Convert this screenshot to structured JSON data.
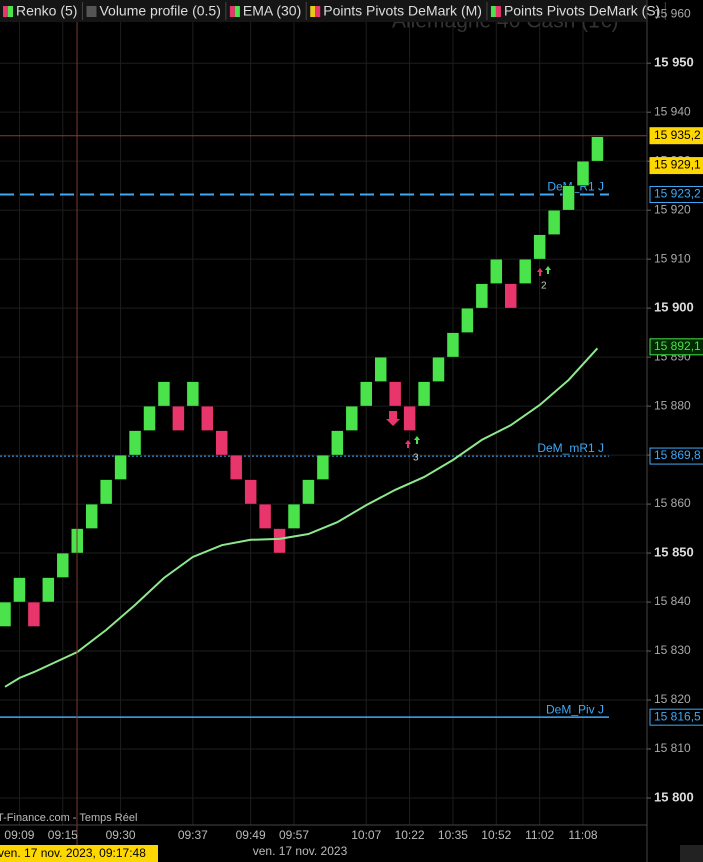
{
  "chart_data": {
    "type": "renko",
    "watermark": "Allemagne 40 Cash (1€)",
    "legend": [
      {
        "name": "Renko (5)",
        "colors": [
          "#e8356b",
          "#4be34b"
        ]
      },
      {
        "name": "Volume profile (0.5)",
        "colors": [
          "#555555",
          "#555555"
        ]
      },
      {
        "name": "EMA (30)",
        "colors": [
          "#e8356b",
          "#4be34b"
        ]
      },
      {
        "name": "Points Pivots DeMark (M)",
        "colors": [
          "#e8c81a",
          "#e8356b"
        ]
      },
      {
        "name": "Points Pivots DeMark (S)",
        "colors": [
          "#4be34b",
          "#e8356b"
        ]
      }
    ],
    "categories": [
      null,
      "09:09",
      null,
      null,
      "09:15",
      null,
      null,
      null,
      "09:30",
      null,
      null,
      null,
      null,
      "09:37",
      null,
      null,
      null,
      "09:49",
      null,
      null,
      "09:57",
      null,
      null,
      null,
      null,
      "10:07",
      null,
      null,
      "10:22",
      null,
      null,
      "10:35",
      null,
      null,
      "10:52",
      null,
      null,
      "11:02",
      null,
      null,
      "11:08",
      null
    ],
    "open": [
      15835,
      15840,
      15840,
      15840,
      15845,
      15850,
      15855,
      15860,
      15865,
      15870,
      15875,
      15880,
      15880,
      15880,
      15880,
      15875,
      15870,
      15865,
      15860,
      15855,
      15855,
      15860,
      15865,
      15870,
      15875,
      15880,
      15885,
      15885,
      15880,
      15880,
      15885,
      15890,
      15895,
      15900,
      15905,
      15905,
      15905,
      15910,
      15915,
      15920,
      15925,
      15930
    ],
    "close": [
      15840,
      15845,
      15835,
      15845,
      15850,
      15855,
      15860,
      15865,
      15870,
      15875,
      15880,
      15885,
      15875,
      15885,
      15875,
      15870,
      15865,
      15860,
      15855,
      15850,
      15860,
      15865,
      15870,
      15875,
      15880,
      15885,
      15890,
      15880,
      15875,
      15885,
      15890,
      15895,
      15900,
      15905,
      15910,
      15900,
      15910,
      15915,
      15920,
      15925,
      15930,
      15935
    ],
    "up_color": "#4be34b",
    "down_color": "#e8356b",
    "ema": {
      "color": "#8ee88e",
      "x": [
        0,
        1,
        2,
        5,
        7,
        9,
        11,
        13,
        15,
        17,
        19,
        21,
        23,
        25,
        27,
        29,
        31,
        33,
        35,
        37,
        39,
        41
      ],
      "values": [
        15822.7,
        15824.5,
        15825.7,
        15829.8,
        15834.3,
        15839.4,
        15844.9,
        15849.2,
        15851.6,
        15852.7,
        15852.9,
        15853.9,
        15856.3,
        15859.8,
        15862.9,
        15865.5,
        15869,
        15873.1,
        15876.1,
        15880.2,
        15885.3,
        15891.8
      ]
    },
    "ylim": [
      15795.1,
      15962.9
    ],
    "yticks": [
      {
        "value": 15960,
        "label": "15 960"
      },
      {
        "value": 15950,
        "label": "15 950"
      },
      {
        "value": 15940,
        "label": "15 940"
      },
      {
        "value": 15930,
        "label": "15 930"
      },
      {
        "value": 15920,
        "label": "15 920"
      },
      {
        "value": 15910,
        "label": "15 910"
      },
      {
        "value": 15900,
        "label": "15 900"
      },
      {
        "value": 15890,
        "label": "15 890"
      },
      {
        "value": 15880,
        "label": "15 880"
      },
      {
        "value": 15870,
        "label": "15 870"
      },
      {
        "value": 15860,
        "label": "15 860"
      },
      {
        "value": 15850,
        "label": "15 850"
      },
      {
        "value": 15840,
        "label": "15 840"
      },
      {
        "value": 15830,
        "label": "15 830"
      },
      {
        "value": 15820,
        "label": "15 820"
      },
      {
        "value": 15810,
        "label": "15 810"
      },
      {
        "value": 15800,
        "label": "15 800"
      }
    ],
    "levels": [
      {
        "name": "DeM_R1 J",
        "value": 15923.2,
        "label": "15 923,2",
        "style": "dashed",
        "color": "#3fa9f5"
      },
      {
        "name": "DeM_mR1 J",
        "value": 15869.8,
        "label": "15 869,8",
        "style": "dotted",
        "color": "#3fa9f5"
      },
      {
        "name": "DeM_Piv J",
        "value": 15816.5,
        "label": "15 816,5",
        "style": "solid",
        "color": "#3fa9f5"
      }
    ],
    "price_tags": [
      {
        "value": 15935.2,
        "label": "15 935,2",
        "color": "#ffd700"
      },
      {
        "value": 15929.1,
        "label": "15 929,1",
        "color": "#ffd700"
      },
      {
        "value": 15892.1,
        "label": "15 892,1",
        "color": "#4be34b"
      }
    ],
    "annotations": [
      "3",
      "2"
    ],
    "source": "T-Finance.com - Temps Réel",
    "date": "ven. 17 nov. 2023",
    "cursor_time": "ven. 17 nov. 2023, 09:17:48"
  }
}
